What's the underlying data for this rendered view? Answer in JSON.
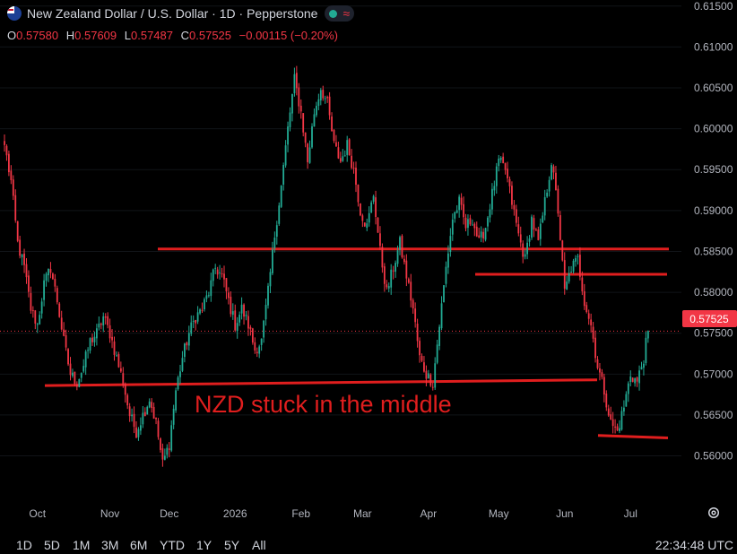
{
  "header": {
    "title": "New Zealand Dollar / U.S. Dollar · 1D · Pepperstone",
    "ohlc": [
      {
        "k": "O",
        "v": "0.57580"
      },
      {
        "k": "H",
        "v": "0.57609"
      },
      {
        "k": "L",
        "v": "0.57487"
      },
      {
        "k": "C",
        "v": "0.57525"
      }
    ],
    "change": "−0.00115 (−0.20%)"
  },
  "range_buttons": [
    "1D",
    "5D",
    "1M",
    "3M",
    "6M",
    "YTD",
    "1Y",
    "5Y",
    "All"
  ],
  "clock": "22:34:48 UTC",
  "colors": {
    "up": "#22ab94",
    "down": "#f23645",
    "annotation": "#e01e1e",
    "background": "#000000"
  },
  "chart_data": {
    "type": "candlestick",
    "ylim": [
      0.5548,
      0.6153
    ],
    "yticks": [
      "0.56000",
      "0.56500",
      "0.57000",
      "0.57500",
      "0.58000",
      "0.58500",
      "0.59000",
      "0.59500",
      "0.60000",
      "0.60500",
      "0.61000",
      "0.61500"
    ],
    "x_labels": [
      "Oct",
      "Nov",
      "Dec",
      "2026",
      "Feb",
      "Mar",
      "Apr",
      "May",
      "Jun",
      "Jul"
    ],
    "last_price": "0.57525",
    "annotation": "NZD stuck in the middle",
    "lines": [
      {
        "y1": 0.5853,
        "y2": 0.5853
      },
      {
        "y1": 0.5686,
        "y2": 0.5693
      },
      {
        "y1": 0.5822,
        "y2": 0.5822
      },
      {
        "y1": 0.5625,
        "y2": 0.5622
      }
    ],
    "path": [
      [
        0,
        0.598
      ],
      [
        3,
        0.5935
      ],
      [
        6,
        0.586
      ],
      [
        9,
        0.583
      ],
      [
        12,
        0.578
      ],
      [
        15,
        0.576
      ],
      [
        18,
        0.581
      ],
      [
        21,
        0.583
      ],
      [
        24,
        0.579
      ],
      [
        27,
        0.574
      ],
      [
        30,
        0.57
      ],
      [
        33,
        0.569
      ],
      [
        36,
        0.571
      ],
      [
        39,
        0.574
      ],
      [
        42,
        0.575
      ],
      [
        45,
        0.577
      ],
      [
        48,
        0.575
      ],
      [
        51,
        0.572
      ],
      [
        54,
        0.569
      ],
      [
        57,
        0.565
      ],
      [
        60,
        0.563
      ],
      [
        63,
        0.565
      ],
      [
        66,
        0.567
      ],
      [
        69,
        0.564
      ],
      [
        72,
        0.559
      ],
      [
        75,
        0.5615
      ],
      [
        78,
        0.568
      ],
      [
        81,
        0.572
      ],
      [
        84,
        0.575
      ],
      [
        87,
        0.577
      ],
      [
        90,
        0.578
      ],
      [
        93,
        0.58
      ],
      [
        96,
        0.583
      ],
      [
        99,
        0.582
      ],
      [
        102,
        0.579
      ],
      [
        105,
        0.576
      ],
      [
        108,
        0.578
      ],
      [
        111,
        0.576
      ],
      [
        114,
        0.573
      ],
      [
        117,
        0.574
      ],
      [
        120,
        0.58
      ],
      [
        123,
        0.587
      ],
      [
        126,
        0.593
      ],
      [
        129,
        0.6
      ],
      [
        132,
        0.606
      ],
      [
        135,
        0.602
      ],
      [
        138,
        0.596
      ],
      [
        141,
        0.602
      ],
      [
        144,
        0.605
      ],
      [
        147,
        0.603
      ],
      [
        150,
        0.598
      ],
      [
        153,
        0.596
      ],
      [
        156,
        0.598
      ],
      [
        159,
        0.595
      ],
      [
        162,
        0.59
      ],
      [
        165,
        0.588
      ],
      [
        168,
        0.592
      ],
      [
        171,
        0.585
      ],
      [
        174,
        0.58
      ],
      [
        177,
        0.583
      ],
      [
        180,
        0.586
      ],
      [
        183,
        0.582
      ],
      [
        186,
        0.578
      ],
      [
        189,
        0.572
      ],
      [
        192,
        0.57
      ],
      [
        195,
        0.569
      ],
      [
        198,
        0.576
      ],
      [
        201,
        0.583
      ],
      [
        204,
        0.589
      ],
      [
        207,
        0.591
      ],
      [
        210,
        0.588
      ],
      [
        213,
        0.589
      ],
      [
        216,
        0.586
      ],
      [
        219,
        0.588
      ],
      [
        222,
        0.592
      ],
      [
        225,
        0.596
      ],
      [
        228,
        0.595
      ],
      [
        231,
        0.591
      ],
      [
        234,
        0.587
      ],
      [
        237,
        0.584
      ],
      [
        240,
        0.589
      ],
      [
        243,
        0.586
      ],
      [
        246,
        0.591
      ],
      [
        249,
        0.596
      ],
      [
        252,
        0.59
      ],
      [
        255,
        0.58
      ],
      [
        258,
        0.583
      ],
      [
        261,
        0.584
      ],
      [
        264,
        0.579
      ],
      [
        267,
        0.576
      ],
      [
        270,
        0.571
      ],
      [
        273,
        0.568
      ],
      [
        276,
        0.564
      ],
      [
        279,
        0.563
      ],
      [
        282,
        0.566
      ],
      [
        285,
        0.57
      ],
      [
        288,
        0.569
      ],
      [
        291,
        0.572
      ],
      [
        293,
        0.5753
      ]
    ]
  }
}
